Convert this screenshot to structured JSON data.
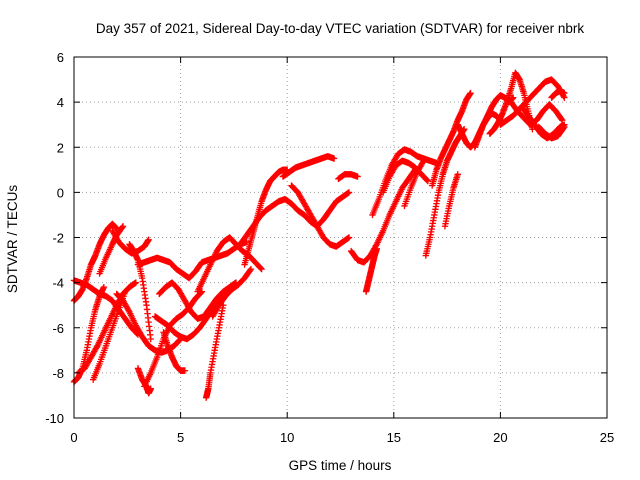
{
  "chart_data": {
    "type": "scatter",
    "title": "Day 357 of 2021, Sidereal Day-to-day VTEC variation (SDTVAR) for receiver nbrk",
    "xlabel": "GPS time / hours",
    "ylabel": "SDTVAR / TECUs",
    "xlim": [
      0,
      25
    ],
    "ylim": [
      -10,
      6
    ],
    "xticks": [
      0,
      5,
      10,
      15,
      20,
      25
    ],
    "yticks": [
      -10,
      -8,
      -6,
      -4,
      -2,
      0,
      2,
      4,
      6
    ],
    "xtick_labels": [
      "0",
      "5",
      "10",
      "15",
      "20",
      "25"
    ],
    "ytick_labels": [
      "-10",
      "-8",
      "-6",
      "-4",
      "-2",
      "0",
      "2",
      "4",
      "6"
    ],
    "grid": true,
    "marker": "plus",
    "series_color": "#ff0000",
    "series": [
      {
        "x": [
          0.0,
          0.2,
          0.4,
          0.6,
          0.8,
          1.0,
          1.2,
          1.4,
          1.6,
          1.8,
          2.0
        ],
        "y": [
          -4.8,
          -4.6,
          -4.3,
          -3.8,
          -3.2,
          -2.8,
          -2.3,
          -1.9,
          -1.6,
          -1.4,
          -1.6
        ]
      },
      {
        "x": [
          0.0,
          0.3,
          0.6,
          0.9,
          1.2,
          1.5,
          1.8,
          2.1,
          2.4,
          2.7,
          3.0
        ],
        "y": [
          -3.9,
          -4.0,
          -4.1,
          -4.3,
          -4.5,
          -4.6,
          -4.8,
          -5.2,
          -5.6,
          -6.0,
          -6.3
        ]
      },
      {
        "x": [
          0.0,
          0.2,
          0.4,
          0.6,
          0.8,
          1.0,
          1.2,
          1.4
        ],
        "y": [
          -8.4,
          -8.2,
          -7.8,
          -7.0,
          -6.0,
          -5.2,
          -4.6,
          -4.2
        ]
      },
      {
        "x": [
          0.2,
          0.5,
          0.8,
          1.1,
          1.4,
          1.7,
          2.0,
          2.3,
          2.6,
          2.9
        ],
        "y": [
          -8.0,
          -7.8,
          -7.3,
          -6.8,
          -6.2,
          -5.6,
          -5.0,
          -4.5,
          -4.2,
          -4.0
        ]
      },
      {
        "x": [
          0.9,
          1.2,
          1.5,
          1.8,
          2.1,
          2.4
        ],
        "y": [
          -8.3,
          -7.6,
          -6.8,
          -6.0,
          -5.2,
          -4.4
        ]
      },
      {
        "x": [
          1.2,
          1.5,
          1.8,
          2.0,
          2.3
        ],
        "y": [
          -3.6,
          -2.9,
          -2.3,
          -1.9,
          -1.5
        ]
      },
      {
        "x": [
          1.8,
          2.1,
          2.4,
          2.7,
          3.0,
          3.3,
          3.5
        ],
        "y": [
          -1.7,
          -2.2,
          -2.5,
          -2.7,
          -2.6,
          -2.4,
          -2.1
        ]
      },
      {
        "x": [
          2.0,
          2.3,
          2.6,
          2.9,
          3.2,
          3.5,
          3.8,
          4.1,
          4.4,
          4.7,
          5.0
        ],
        "y": [
          -4.5,
          -4.8,
          -5.3,
          -5.9,
          -6.4,
          -6.8,
          -7.0,
          -7.1,
          -7.0,
          -6.8,
          -6.5
        ]
      },
      {
        "x": [
          2.6,
          2.8,
          3.0,
          3.2,
          3.4,
          3.6
        ],
        "y": [
          -2.3,
          -2.6,
          -3.0,
          -3.8,
          -5.0,
          -6.5
        ]
      },
      {
        "x": [
          3.0,
          3.2,
          3.4,
          3.5,
          3.6
        ],
        "y": [
          -7.8,
          -8.3,
          -8.6,
          -8.9,
          -8.7
        ]
      },
      {
        "x": [
          3.0,
          3.3,
          3.6,
          3.9,
          4.2,
          4.5,
          4.8,
          5.1,
          5.4,
          5.7,
          6.0,
          6.3,
          6.6,
          6.9,
          7.2,
          7.5,
          7.8,
          8.1
        ],
        "y": [
          -3.2,
          -3.1,
          -3.0,
          -2.9,
          -3.0,
          -3.1,
          -3.4,
          -3.6,
          -3.8,
          -3.5,
          -3.1,
          -3.0,
          -2.9,
          -2.8,
          -2.7,
          -2.5,
          -2.3,
          -2.2
        ]
      },
      {
        "x": [
          3.3,
          3.6,
          3.9,
          4.2,
          4.5,
          4.8,
          5.1,
          5.4,
          5.7,
          6.0
        ],
        "y": [
          -8.6,
          -8.0,
          -7.3,
          -6.5,
          -5.9,
          -5.6,
          -5.4,
          -5.1,
          -4.7,
          -4.4
        ]
      },
      {
        "x": [
          3.8,
          4.1,
          4.4,
          4.7,
          5.0,
          5.3,
          5.6,
          5.9,
          6.2,
          6.5,
          6.8,
          7.1,
          7.4
        ],
        "y": [
          -5.5,
          -5.7,
          -5.9,
          -6.2,
          -6.4,
          -6.5,
          -6.3,
          -6.0,
          -5.6,
          -5.2,
          -4.8,
          -4.5,
          -4.3
        ]
      },
      {
        "x": [
          4.0,
          4.3,
          4.6,
          4.9,
          5.2,
          5.5,
          5.8,
          6.1,
          6.4,
          6.7,
          7.0,
          7.3,
          7.6
        ],
        "y": [
          -4.5,
          -4.2,
          -4.0,
          -4.3,
          -4.8,
          -5.3,
          -5.6,
          -5.5,
          -5.1,
          -4.7,
          -4.4,
          -4.2,
          -4.0
        ]
      },
      {
        "x": [
          4.2,
          4.4,
          4.6,
          4.8,
          5.0,
          5.2
        ],
        "y": [
          -6.2,
          -6.8,
          -7.3,
          -7.7,
          -7.9,
          -7.9
        ]
      },
      {
        "x": [
          6.2,
          6.3,
          6.4,
          6.6,
          6.8,
          7.0
        ],
        "y": [
          -9.1,
          -8.7,
          -8.0,
          -7.0,
          -6.0,
          -5.0
        ]
      },
      {
        "x": [
          5.8,
          6.1,
          6.4,
          6.7,
          7.0,
          7.3,
          7.6,
          7.9,
          8.2,
          8.5,
          8.8
        ],
        "y": [
          -4.4,
          -3.8,
          -3.2,
          -2.6,
          -2.2,
          -2.0,
          -2.3,
          -2.6,
          -2.8,
          -3.1,
          -3.4
        ]
      },
      {
        "x": [
          6.5,
          6.8,
          7.1,
          7.4,
          7.7,
          8.0,
          8.3
        ],
        "y": [
          -5.5,
          -5.0,
          -4.6,
          -4.3,
          -4.1,
          -3.8,
          -3.4
        ]
      },
      {
        "x": [
          7.8,
          8.1,
          8.4,
          8.7,
          9.0,
          9.3,
          9.6,
          9.9,
          10.2,
          10.5,
          10.8,
          11.1,
          11.4,
          11.7,
          12.0,
          12.3,
          12.6,
          12.9
        ],
        "y": [
          -2.3,
          -1.9,
          -1.5,
          -1.1,
          -0.8,
          -0.6,
          -0.4,
          -0.3,
          -0.5,
          -0.8,
          -1.0,
          -1.3,
          -1.5,
          -1.2,
          -0.8,
          -0.4,
          -0.2,
          0.0
        ]
      },
      {
        "x": [
          8.0,
          8.2,
          8.4,
          8.6,
          8.8,
          9.0,
          9.2,
          9.4,
          9.6,
          9.8,
          10.0
        ],
        "y": [
          -3.2,
          -2.5,
          -1.8,
          -1.1,
          -0.4,
          0.1,
          0.5,
          0.7,
          0.9,
          1.0,
          1.0
        ]
      },
      {
        "x": [
          9.8,
          10.1,
          10.4,
          10.7,
          11.0,
          11.3,
          11.6,
          11.9,
          12.2
        ],
        "y": [
          0.7,
          0.9,
          1.1,
          1.2,
          1.3,
          1.4,
          1.5,
          1.6,
          1.5
        ]
      },
      {
        "x": [
          10.2,
          10.5,
          10.8,
          11.1,
          11.4,
          11.7,
          12.0,
          12.3,
          12.6,
          12.9
        ],
        "y": [
          0.3,
          0.0,
          -0.5,
          -1.0,
          -1.5,
          -2.0,
          -2.3,
          -2.4,
          -2.2,
          -2.0
        ]
      },
      {
        "x": [
          12.4,
          12.7,
          13.0,
          13.3
        ],
        "y": [
          0.6,
          0.8,
          0.8,
          0.7
        ]
      },
      {
        "x": [
          13.0,
          13.3,
          13.6,
          13.9,
          14.2,
          14.5,
          14.8,
          15.1,
          15.4,
          15.7,
          16.0
        ],
        "y": [
          -2.6,
          -3.0,
          -3.1,
          -2.8,
          -2.3,
          -1.7,
          -1.0,
          -0.4,
          0.2,
          0.6,
          1.0
        ]
      },
      {
        "x": [
          13.7,
          13.8,
          13.9,
          14.0,
          14.1,
          14.2
        ],
        "y": [
          -4.4,
          -4.0,
          -3.6,
          -3.2,
          -2.8,
          -2.5
        ]
      },
      {
        "x": [
          14.0,
          14.3,
          14.6,
          14.9,
          15.2,
          15.5,
          15.8,
          16.1,
          16.4,
          16.7,
          17.0
        ],
        "y": [
          -1.0,
          -0.3,
          0.5,
          1.2,
          1.7,
          1.9,
          1.8,
          1.6,
          1.5,
          1.4,
          1.3
        ]
      },
      {
        "x": [
          14.5,
          14.8,
          15.1,
          15.4,
          15.7,
          16.0,
          16.3,
          16.6
        ],
        "y": [
          0.0,
          0.7,
          1.2,
          1.4,
          1.3,
          1.1,
          0.8,
          0.5
        ]
      },
      {
        "x": [
          15.5,
          15.8,
          16.1,
          16.4
        ],
        "y": [
          -0.6,
          0.2,
          0.9,
          1.4
        ]
      },
      {
        "x": [
          16.5,
          16.7,
          16.9,
          17.1,
          17.3,
          17.5,
          17.7,
          17.9,
          18.1,
          18.3
        ],
        "y": [
          -2.8,
          -2.0,
          -1.0,
          0.0,
          0.8,
          1.4,
          1.8,
          2.2,
          2.5,
          2.8
        ]
      },
      {
        "x": [
          16.8,
          17.0,
          17.2,
          17.4,
          17.6,
          17.8,
          18.0,
          18.2,
          18.4,
          18.6
        ],
        "y": [
          0.3,
          1.0,
          1.5,
          1.9,
          2.3,
          2.7,
          3.2,
          3.6,
          4.1,
          4.4
        ]
      },
      {
        "x": [
          17.4,
          17.6,
          17.8,
          18.0
        ],
        "y": [
          -1.5,
          -0.6,
          0.2,
          0.8
        ]
      },
      {
        "x": [
          18.0,
          18.2,
          18.4,
          18.6,
          18.8,
          19.0,
          19.2,
          19.4,
          19.6,
          19.8,
          20.0
        ],
        "y": [
          3.0,
          2.6,
          2.2,
          2.0,
          2.2,
          2.6,
          3.0,
          3.3,
          3.5,
          3.4,
          3.2
        ]
      },
      {
        "x": [
          18.8,
          19.0,
          19.2,
          19.4,
          19.6,
          19.8,
          20.0,
          20.2,
          20.4,
          20.6
        ],
        "y": [
          2.0,
          2.5,
          3.0,
          3.4,
          3.8,
          4.1,
          4.3,
          4.2,
          4.0,
          4.2
        ]
      },
      {
        "x": [
          19.5,
          19.7,
          19.9,
          20.1,
          20.3,
          20.5,
          20.7,
          20.9,
          21.1,
          21.3,
          21.5
        ],
        "y": [
          2.6,
          2.8,
          3.1,
          3.5,
          4.0,
          4.6,
          5.3,
          5.0,
          4.4,
          3.6,
          2.8
        ]
      },
      {
        "x": [
          20.0,
          20.3,
          20.6,
          20.9,
          21.2,
          21.5,
          21.8,
          22.1,
          22.4,
          22.7,
          23.0
        ],
        "y": [
          3.0,
          3.2,
          3.4,
          3.7,
          4.0,
          4.3,
          4.6,
          4.9,
          5.0,
          4.7,
          4.2
        ]
      },
      {
        "x": [
          20.5,
          20.8,
          21.1,
          21.4,
          21.7,
          22.0,
          22.3,
          22.6,
          22.9
        ],
        "y": [
          4.0,
          3.6,
          3.3,
          3.0,
          3.2,
          3.6,
          3.9,
          3.6,
          3.2
        ]
      },
      {
        "x": [
          21.0,
          21.3,
          21.6,
          21.9,
          22.2,
          22.5,
          22.8,
          23.0
        ],
        "y": [
          3.8,
          3.4,
          3.0,
          2.6,
          2.4,
          2.6,
          2.9,
          3.0
        ]
      },
      {
        "x": [
          21.8,
          22.1,
          22.4,
          22.7,
          23.0
        ],
        "y": [
          2.9,
          2.6,
          2.4,
          2.5,
          2.9
        ]
      },
      {
        "x": [
          22.4,
          22.6,
          22.8,
          23.0
        ],
        "y": [
          4.2,
          4.4,
          4.5,
          4.4
        ]
      }
    ]
  }
}
